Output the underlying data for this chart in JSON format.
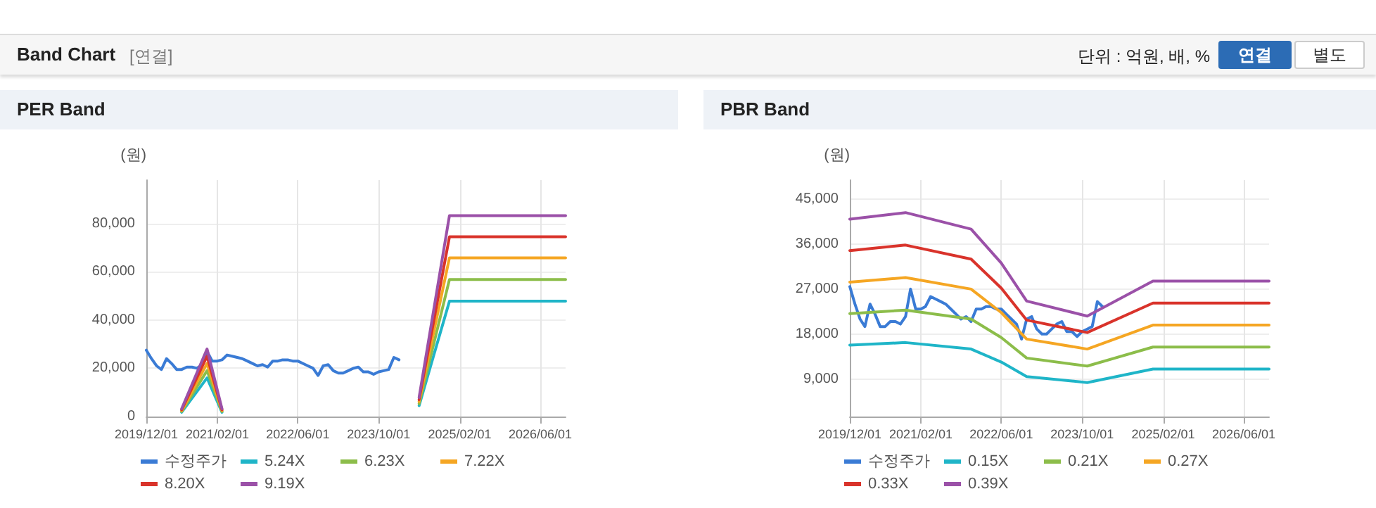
{
  "chart_data": [
    {
      "type": "line",
      "title": "PER Band",
      "ylabel": "(원)",
      "annotations": [
        "Band Chart",
        "[연결]",
        "단위 : 억원, 배, %",
        "연결",
        "별도"
      ],
      "xlim": [
        "2019-12-01",
        "2026-11-01"
      ],
      "xticks": [
        {
          "value": "2019-12-01",
          "label": "2019/12/01"
        },
        {
          "value": "2021-02-01",
          "label": "2021/02/01"
        },
        {
          "value": "2022-06-01",
          "label": "2022/06/01"
        },
        {
          "value": "2023-10-01",
          "label": "2023/10/01"
        },
        {
          "value": "2025-02-01",
          "label": "2025/02/01"
        },
        {
          "value": "2026-06-01",
          "label": "2026/06/01"
        }
      ],
      "ylim": [
        0,
        98000
      ],
      "yticks": [
        0,
        {
          "value": 20000,
          "label": "20,000"
        },
        {
          "value": 40000,
          "label": "40,000"
        },
        {
          "value": 60000,
          "label": "60,000"
        },
        {
          "value": 80000,
          "label": "80,000"
        }
      ],
      "grid": true,
      "legend": "bottom",
      "marker": "none",
      "line_style": "solid",
      "series": [
        {
          "name": "수정주가",
          "color": "#3a7bd5",
          "x": [
            "2019-12",
            "2020-01",
            "2020-02",
            "2020-03",
            "2020-04",
            "2020-05",
            "2020-06",
            "2020-07",
            "2020-08",
            "2020-09",
            "2020-10",
            "2020-11",
            "2020-12",
            "2021-01",
            "2021-02",
            "2021-03",
            "2021-04",
            "2021-05",
            "2021-06",
            "2021-07",
            "2021-08",
            "2021-09",
            "2021-10",
            "2021-11",
            "2021-12",
            "2022-01",
            "2022-02",
            "2022-03",
            "2022-04",
            "2022-05",
            "2022-06",
            "2022-07",
            "2022-08",
            "2022-09",
            "2022-10",
            "2022-11",
            "2022-12",
            "2023-01",
            "2023-02",
            "2023-03",
            "2023-04",
            "2023-05",
            "2023-06",
            "2023-07",
            "2023-08",
            "2023-09",
            "2023-10",
            "2023-11",
            "2023-12",
            "2024-01",
            "2024-02"
          ],
          "values": [
            27500,
            24000,
            21000,
            19500,
            24000,
            22000,
            19500,
            19500,
            20500,
            20500,
            20000,
            21500,
            27000,
            23000,
            23000,
            23500,
            25500,
            25000,
            24500,
            24000,
            23000,
            22000,
            21000,
            21500,
            20500,
            23000,
            23000,
            23500,
            23500,
            23000,
            23000,
            22000,
            21000,
            20000,
            17000,
            21000,
            21500,
            19000,
            18000,
            18000,
            19000,
            20000,
            20500,
            18500,
            18500,
            17500,
            18500,
            19000,
            19500,
            24500,
            23500
          ]
        },
        {
          "name": "5.24X",
          "color": "#1fb5c8",
          "x": [
            "2020-07",
            "2020-12",
            "2021-03",
            "2022-06",
            "2024-06",
            "2024-12",
            "2026-11"
          ],
          "values": [
            1800,
            16000,
            1800,
            null,
            4500,
            47800,
            47800
          ]
        },
        {
          "name": "6.23X",
          "color": "#8cbd4a",
          "x": [
            "2020-07",
            "2020-12",
            "2021-03",
            "2022-06",
            "2024-06",
            "2024-12",
            "2026-11"
          ],
          "values": [
            2100,
            19000,
            2100,
            null,
            5300,
            56800,
            56800
          ]
        },
        {
          "name": "7.22X",
          "color": "#f5a623",
          "x": [
            "2020-07",
            "2020-12",
            "2021-03",
            "2022-06",
            "2024-06",
            "2024-12",
            "2026-11"
          ],
          "values": [
            2400,
            22000,
            2400,
            null,
            6200,
            65800,
            65800
          ]
        },
        {
          "name": "8.20X",
          "color": "#d9332b",
          "x": [
            "2020-07",
            "2020-12",
            "2021-03",
            "2022-06",
            "2024-06",
            "2024-12",
            "2026-11"
          ],
          "values": [
            2800,
            25000,
            2800,
            null,
            7000,
            74500,
            74500
          ]
        },
        {
          "name": "9.19X",
          "color": "#9b51a8",
          "x": [
            "2020-07",
            "2020-12",
            "2021-03",
            "2022-06",
            "2024-06",
            "2024-12",
            "2026-11"
          ],
          "values": [
            3200,
            28000,
            3200,
            null,
            7900,
            83300,
            83300
          ]
        }
      ]
    },
    {
      "type": "line",
      "title": "PBR Band",
      "ylabel": "(원)",
      "xlim": [
        "2019-12-01",
        "2026-11-01"
      ],
      "xticks": [
        {
          "value": "2019-12-01",
          "label": "2019/12/01"
        },
        {
          "value": "2021-02-01",
          "label": "2021/02/01"
        },
        {
          "value": "2022-06-01",
          "label": "2022/06/01"
        },
        {
          "value": "2023-10-01",
          "label": "2023/10/01"
        },
        {
          "value": "2025-02-01",
          "label": "2025/02/01"
        },
        {
          "value": "2026-06-01",
          "label": "2026/06/01"
        }
      ],
      "ylim": [
        1500,
        48800
      ],
      "yticks": [
        {
          "value": 9000,
          "label": "9,000"
        },
        {
          "value": 18000,
          "label": "18,000"
        },
        {
          "value": 27000,
          "label": "27,000"
        },
        {
          "value": 36000,
          "label": "36,000"
        },
        {
          "value": 45000,
          "label": "45,000"
        }
      ],
      "grid": true,
      "legend": "bottom",
      "marker": "none",
      "line_style": "solid",
      "series": [
        {
          "name": "수정주가",
          "color": "#3a7bd5",
          "x": [
            "2019-12",
            "2020-01",
            "2020-02",
            "2020-03",
            "2020-04",
            "2020-05",
            "2020-06",
            "2020-07",
            "2020-08",
            "2020-09",
            "2020-10",
            "2020-11",
            "2020-12",
            "2021-01",
            "2021-02",
            "2021-03",
            "2021-04",
            "2021-05",
            "2021-06",
            "2021-07",
            "2021-08",
            "2021-09",
            "2021-10",
            "2021-11",
            "2021-12",
            "2022-01",
            "2022-02",
            "2022-03",
            "2022-04",
            "2022-05",
            "2022-06",
            "2022-07",
            "2022-08",
            "2022-09",
            "2022-10",
            "2022-11",
            "2022-12",
            "2023-01",
            "2023-02",
            "2023-03",
            "2023-04",
            "2023-05",
            "2023-06",
            "2023-07",
            "2023-08",
            "2023-09",
            "2023-10",
            "2023-11",
            "2023-12",
            "2024-01",
            "2024-02"
          ],
          "values": [
            27500,
            24000,
            21000,
            19500,
            24000,
            22000,
            19500,
            19500,
            20500,
            20500,
            20000,
            21500,
            27000,
            23000,
            23000,
            23500,
            25500,
            25000,
            24500,
            24000,
            23000,
            22000,
            21000,
            21500,
            20500,
            23000,
            23000,
            23500,
            23500,
            23000,
            23000,
            22000,
            21000,
            20000,
            17000,
            21000,
            21500,
            19000,
            18000,
            18000,
            19000,
            20000,
            20500,
            18500,
            18500,
            17500,
            18500,
            19000,
            19500,
            24500,
            23500
          ]
        },
        {
          "name": "0.15X",
          "color": "#1fb5c8",
          "x": [
            "2019-12",
            "2020-11",
            "2021-12",
            "2022-06",
            "2022-11",
            "2023-11",
            "2024-12",
            "2026-11"
          ],
          "values": [
            15800,
            16300,
            15000,
            12400,
            9500,
            8300,
            11000,
            11000
          ]
        },
        {
          "name": "0.21X",
          "color": "#8cbd4a",
          "x": [
            "2019-12",
            "2020-11",
            "2021-12",
            "2022-06",
            "2022-11",
            "2023-11",
            "2024-12",
            "2026-11"
          ],
          "values": [
            22100,
            22800,
            21000,
            17300,
            13200,
            11600,
            15400,
            15400
          ]
        },
        {
          "name": "0.27X",
          "color": "#f5a623",
          "x": [
            "2019-12",
            "2020-11",
            "2021-12",
            "2022-06",
            "2022-11",
            "2023-11",
            "2024-12",
            "2026-11"
          ],
          "values": [
            28400,
            29300,
            27000,
            22300,
            17000,
            15000,
            19800,
            19800
          ]
        },
        {
          "name": "0.33X",
          "color": "#d9332b",
          "x": [
            "2019-12",
            "2020-11",
            "2021-12",
            "2022-06",
            "2022-11",
            "2023-11",
            "2024-12",
            "2026-11"
          ],
          "values": [
            34700,
            35800,
            33000,
            27200,
            20800,
            18300,
            24200,
            24200
          ]
        },
        {
          "name": "0.39X",
          "color": "#9b51a8",
          "x": [
            "2019-12",
            "2020-11",
            "2021-12",
            "2022-06",
            "2022-11",
            "2023-11",
            "2024-12",
            "2026-11"
          ],
          "values": [
            41000,
            42300,
            39000,
            32200,
            24600,
            21600,
            28600,
            28600
          ]
        }
      ]
    }
  ]
}
